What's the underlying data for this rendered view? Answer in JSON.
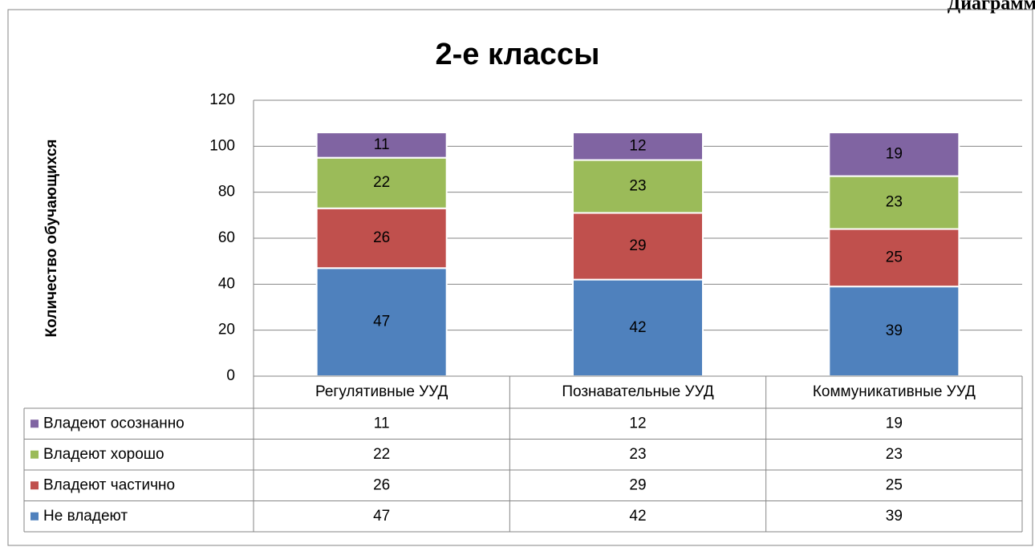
{
  "header_text": "Диаграмм",
  "chart_data": {
    "type": "stacked_bar",
    "title": "2-е классы",
    "y_label": "Количество обучающихся",
    "categories": [
      "Регулятивные УУД",
      "Познавательные УУД",
      "Коммуникативные УУД"
    ],
    "series": [
      {
        "name": "Не владеют",
        "color": "#4f81bd",
        "values": [
          47,
          42,
          39
        ]
      },
      {
        "name": "Владеют частично",
        "color": "#c0504d",
        "values": [
          26,
          29,
          25
        ]
      },
      {
        "name": "Владеют хорошо",
        "color": "#9bbb59",
        "values": [
          22,
          23,
          23
        ]
      },
      {
        "name": "Владеют осознанно",
        "color": "#8064a2",
        "values": [
          11,
          12,
          19
        ]
      }
    ],
    "ylim": [
      0,
      120
    ],
    "yticks": [
      0,
      20,
      40,
      60,
      80,
      100,
      120
    ],
    "grid": true,
    "data_table": true
  }
}
